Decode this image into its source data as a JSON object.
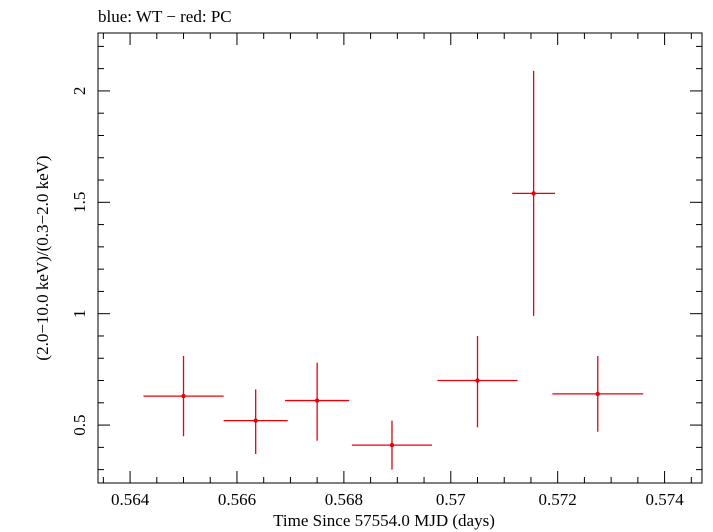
{
  "chart_data": {
    "type": "scatter",
    "title": "blue: WT − red: PC",
    "xlabel": "Time Since 57554.0 MJD (days)",
    "ylabel": "(2.0−10.0 keV)/(0.3−2.0 keV)",
    "xlim": [
      0.5634,
      0.5747
    ],
    "ylim": [
      0.24,
      2.26
    ],
    "x_ticks": [
      0.564,
      0.566,
      0.568,
      0.57,
      0.572,
      0.574
    ],
    "x_tick_labels": [
      "0.564",
      "0.566",
      "0.568",
      "0.57",
      "0.572",
      "0.574"
    ],
    "y_ticks": [
      0.5,
      1,
      1.5,
      2
    ],
    "y_tick_labels": [
      "0.5",
      "1",
      "1.5",
      "2"
    ],
    "grid": false,
    "series": [
      {
        "color": "#e8000b",
        "points": [
          {
            "x": 0.565,
            "xerr": 0.00075,
            "y": 0.63,
            "ylo": 0.45,
            "yhi": 0.81
          },
          {
            "x": 0.56635,
            "xerr": 0.0006,
            "y": 0.52,
            "ylo": 0.37,
            "yhi": 0.66
          },
          {
            "x": 0.5675,
            "xerr": 0.0006,
            "y": 0.61,
            "ylo": 0.43,
            "yhi": 0.78
          },
          {
            "x": 0.5689,
            "xerr": 0.00075,
            "y": 0.41,
            "ylo": 0.3,
            "yhi": 0.52
          },
          {
            "x": 0.5705,
            "xerr": 0.00075,
            "y": 0.7,
            "ylo": 0.49,
            "yhi": 0.9
          },
          {
            "x": 0.57155,
            "xerr": 0.0004,
            "y": 1.54,
            "ylo": 0.99,
            "yhi": 2.09
          },
          {
            "x": 0.57275,
            "xerr": 0.00085,
            "y": 0.64,
            "ylo": 0.47,
            "yhi": 0.81
          }
        ]
      }
    ]
  }
}
